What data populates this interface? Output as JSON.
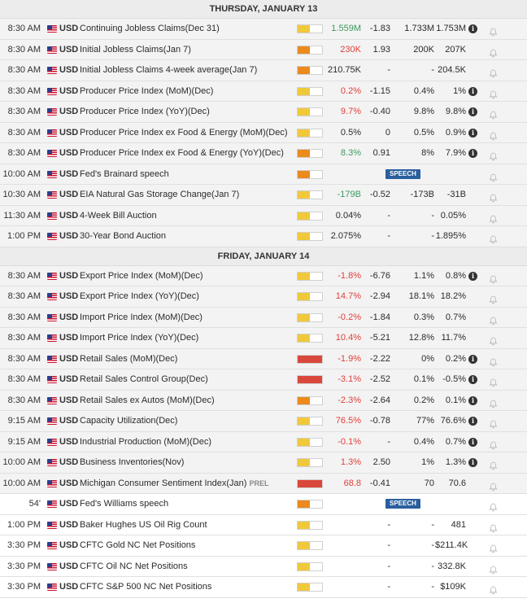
{
  "colors": {
    "low": "#f0c93a",
    "medium": "#eb8a1e",
    "high": "#d9483b"
  },
  "icons": {
    "flag": "us-flag-icon",
    "info": "info-icon",
    "bell": "bell-icon"
  },
  "days": [
    {
      "label": "THURSDAY, JANUARY 13",
      "rows": [
        {
          "time": "8:30 AM",
          "cur": "USD",
          "name": "Continuing Jobless Claims(Dec 31)",
          "imp": "low",
          "imp_fill": 0.5,
          "act": "1.559M",
          "act_color": "green",
          "dev": "-1.83",
          "cons": "1.733M",
          "prev": "1.753M",
          "info": true
        },
        {
          "time": "8:30 AM",
          "cur": "USD",
          "name": "Initial Jobless Claims(Jan 7)",
          "imp": "medium",
          "imp_fill": 0.5,
          "act": "230K",
          "act_color": "red",
          "dev": "1.93",
          "cons": "200K",
          "prev": "207K",
          "info": false
        },
        {
          "time": "8:30 AM",
          "cur": "USD",
          "name": "Initial Jobless Claims 4-week average(Jan 7)",
          "imp": "medium",
          "imp_fill": 0.5,
          "act": "210.75K",
          "act_color": "black",
          "dev": "-",
          "cons": "-",
          "prev": "204.5K",
          "info": false
        },
        {
          "time": "8:30 AM",
          "cur": "USD",
          "name": "Producer Price Index (MoM)(Dec)",
          "imp": "low",
          "imp_fill": 0.5,
          "act": "0.2%",
          "act_color": "red",
          "dev": "-1.15",
          "cons": "0.4%",
          "prev": "1%",
          "info": true
        },
        {
          "time": "8:30 AM",
          "cur": "USD",
          "name": "Producer Price Index (YoY)(Dec)",
          "imp": "low",
          "imp_fill": 0.5,
          "act": "9.7%",
          "act_color": "red",
          "dev": "-0.40",
          "cons": "9.8%",
          "prev": "9.8%",
          "info": true
        },
        {
          "time": "8:30 AM",
          "cur": "USD",
          "name": "Producer Price Index ex Food & Energy (MoM)(Dec)",
          "imp": "low",
          "imp_fill": 0.5,
          "act": "0.5%",
          "act_color": "black",
          "dev": "0",
          "cons": "0.5%",
          "prev": "0.9%",
          "info": true
        },
        {
          "time": "8:30 AM",
          "cur": "USD",
          "name": "Producer Price Index ex Food & Energy (YoY)(Dec)",
          "imp": "medium",
          "imp_fill": 0.5,
          "act": "8.3%",
          "act_color": "green",
          "dev": "0.91",
          "cons": "8%",
          "prev": "7.9%",
          "info": true
        },
        {
          "time": "10:00 AM",
          "cur": "USD",
          "name": "Fed's Brainard speech",
          "imp": "medium",
          "imp_fill": 0.5,
          "speech": "SPEECH"
        },
        {
          "time": "10:30 AM",
          "cur": "USD",
          "name": "EIA Natural Gas Storage Change(Jan 7)",
          "imp": "low",
          "imp_fill": 0.5,
          "act": "-179B",
          "act_color": "green",
          "dev": "-0.52",
          "cons": "-173B",
          "prev": "-31B",
          "info": false
        },
        {
          "time": "11:30 AM",
          "cur": "USD",
          "name": "4-Week Bill Auction",
          "imp": "low",
          "imp_fill": 0.5,
          "act": "0.04%",
          "act_color": "black",
          "dev": "-",
          "cons": "-",
          "prev": "0.05%",
          "info": false
        },
        {
          "time": "1:00 PM",
          "cur": "USD",
          "name": "30-Year Bond Auction",
          "imp": "low",
          "imp_fill": 0.5,
          "act": "2.075%",
          "act_color": "black",
          "dev": "-",
          "cons": "-",
          "prev": "1.895%",
          "info": false
        }
      ]
    },
    {
      "label": "FRIDAY, JANUARY 14",
      "rows": [
        {
          "time": "8:30 AM",
          "cur": "USD",
          "name": "Export Price Index (MoM)(Dec)",
          "imp": "low",
          "imp_fill": 0.5,
          "act": "-1.8%",
          "act_color": "red",
          "dev": "-6.76",
          "cons": "1.1%",
          "prev": "0.8%",
          "info": true
        },
        {
          "time": "8:30 AM",
          "cur": "USD",
          "name": "Export Price Index (YoY)(Dec)",
          "imp": "low",
          "imp_fill": 0.5,
          "act": "14.7%",
          "act_color": "red",
          "dev": "-2.94",
          "cons": "18.1%",
          "prev": "18.2%",
          "info": false
        },
        {
          "time": "8:30 AM",
          "cur": "USD",
          "name": "Import Price Index (MoM)(Dec)",
          "imp": "low",
          "imp_fill": 0.5,
          "act": "-0.2%",
          "act_color": "red",
          "dev": "-1.84",
          "cons": "0.3%",
          "prev": "0.7%",
          "info": false
        },
        {
          "time": "8:30 AM",
          "cur": "USD",
          "name": "Import Price Index (YoY)(Dec)",
          "imp": "low",
          "imp_fill": 0.5,
          "act": "10.4%",
          "act_color": "red",
          "dev": "-5.21",
          "cons": "12.8%",
          "prev": "11.7%",
          "info": false
        },
        {
          "time": "8:30 AM",
          "cur": "USD",
          "name": "Retail Sales (MoM)(Dec)",
          "imp": "high",
          "imp_fill": 1,
          "act": "-1.9%",
          "act_color": "red",
          "dev": "-2.22",
          "cons": "0%",
          "prev": "0.2%",
          "info": true
        },
        {
          "time": "8:30 AM",
          "cur": "USD",
          "name": "Retail Sales Control Group(Dec)",
          "imp": "high",
          "imp_fill": 1,
          "act": "-3.1%",
          "act_color": "red",
          "dev": "-2.52",
          "cons": "0.1%",
          "prev": "-0.5%",
          "info": true
        },
        {
          "time": "8:30 AM",
          "cur": "USD",
          "name": "Retail Sales ex Autos (MoM)(Dec)",
          "imp": "medium",
          "imp_fill": 0.5,
          "act": "-2.3%",
          "act_color": "red",
          "dev": "-2.64",
          "cons": "0.2%",
          "prev": "0.1%",
          "info": true
        },
        {
          "time": "9:15 AM",
          "cur": "USD",
          "name": "Capacity Utilization(Dec)",
          "imp": "low",
          "imp_fill": 0.5,
          "act": "76.5%",
          "act_color": "red",
          "dev": "-0.78",
          "cons": "77%",
          "prev": "76.6%",
          "info": true
        },
        {
          "time": "9:15 AM",
          "cur": "USD",
          "name": "Industrial Production (MoM)(Dec)",
          "imp": "low",
          "imp_fill": 0.5,
          "act": "-0.1%",
          "act_color": "red",
          "dev": "-",
          "cons": "0.4%",
          "prev": "0.7%",
          "info": true
        },
        {
          "time": "10:00 AM",
          "cur": "USD",
          "name": "Business Inventories(Nov)",
          "imp": "low",
          "imp_fill": 0.5,
          "act": "1.3%",
          "act_color": "red",
          "dev": "2.50",
          "cons": "1%",
          "prev": "1.3%",
          "info": true
        },
        {
          "time": "10:00 AM",
          "cur": "USD",
          "name": "Michigan Consumer Sentiment Index(Jan)",
          "prel": "PREL",
          "imp": "high",
          "imp_fill": 1,
          "act": "68.8",
          "act_color": "red",
          "dev": "-0.41",
          "cons": "70",
          "prev": "70.6",
          "info": false
        },
        {
          "time": "54'",
          "cur": "USD",
          "name": "Fed's Williams speech",
          "imp": "medium",
          "imp_fill": 0.5,
          "speech": "SPEECH",
          "upcoming": true
        },
        {
          "time": "1:00 PM",
          "cur": "USD",
          "name": "Baker Hughes US Oil Rig Count",
          "imp": "low",
          "imp_fill": 0.5,
          "act": "",
          "act_color": "black",
          "dev": "-",
          "cons": "-",
          "prev": "481",
          "info": false,
          "upcoming": true
        },
        {
          "time": "3:30 PM",
          "cur": "USD",
          "name": "CFTC Gold NC Net Positions",
          "imp": "low",
          "imp_fill": 0.5,
          "act": "",
          "act_color": "black",
          "dev": "-",
          "cons": "-",
          "prev": "$211.4K",
          "info": false,
          "upcoming": true
        },
        {
          "time": "3:30 PM",
          "cur": "USD",
          "name": "CFTC Oil NC Net Positions",
          "imp": "low",
          "imp_fill": 0.5,
          "act": "",
          "act_color": "black",
          "dev": "-",
          "cons": "-",
          "prev": "332.8K",
          "info": false,
          "upcoming": true
        },
        {
          "time": "3:30 PM",
          "cur": "USD",
          "name": "CFTC S&P 500 NC Net Positions",
          "imp": "low",
          "imp_fill": 0.5,
          "act": "",
          "act_color": "black",
          "dev": "-",
          "cons": "-",
          "prev": "$109K",
          "info": false,
          "upcoming": true
        }
      ]
    }
  ]
}
